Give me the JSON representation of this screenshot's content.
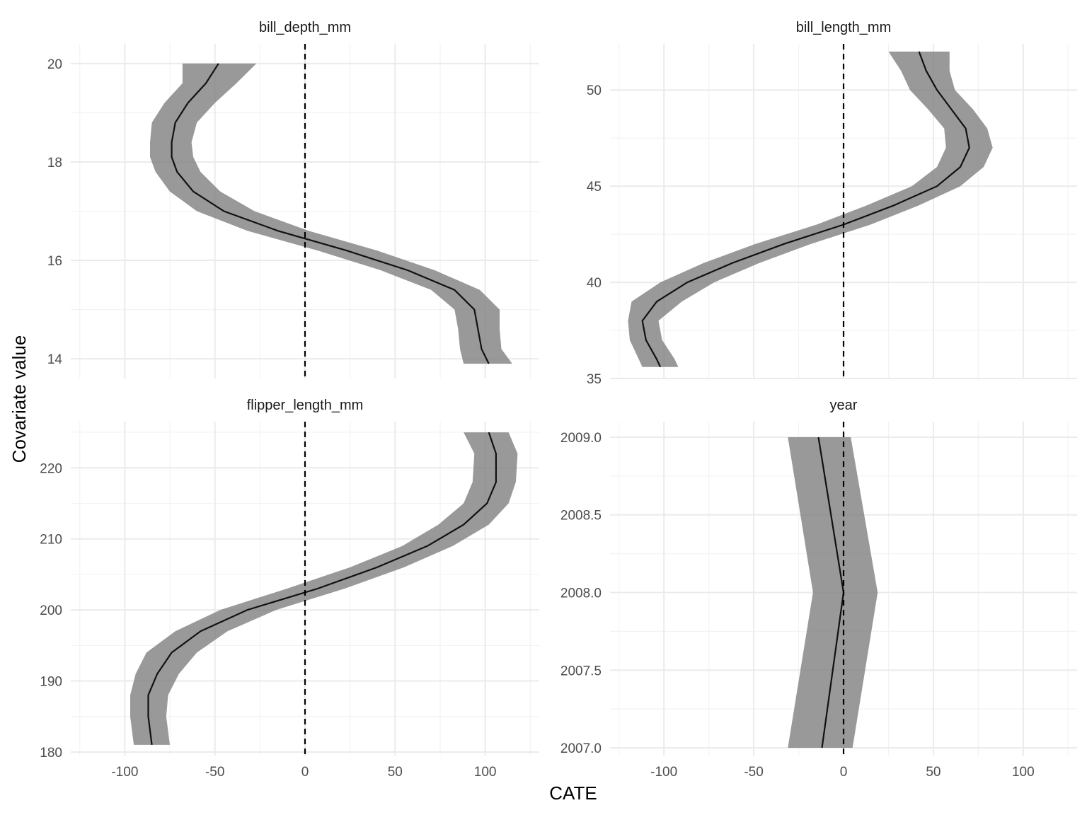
{
  "chart_data": {
    "type": "line",
    "layout": "facet 2x2",
    "xlabel": "CATE",
    "ylabel": "Covariate value",
    "xlim": [
      -130,
      130
    ],
    "xticks": [
      -100,
      -50,
      0,
      50,
      100
    ],
    "xtick_labels": [
      "-100",
      "-50",
      "0",
      "50",
      "100"
    ],
    "reference_line_x": 0,
    "grid": true,
    "colors": {
      "ribbon": "#7f7f7f",
      "line": "#111111",
      "grid": "#ebebeb"
    },
    "panels": [
      {
        "title": "bill_depth_mm",
        "ylim": [
          13.6,
          20.4
        ],
        "yticks": [
          14,
          16,
          18,
          20
        ],
        "ytick_labels": [
          "14",
          "16",
          "18",
          "20"
        ],
        "points": [
          {
            "y": 20.0,
            "cate": -48,
            "lo": -68,
            "hi": -27
          },
          {
            "y": 19.6,
            "cate": -55,
            "lo": -68,
            "hi": -38
          },
          {
            "y": 19.2,
            "cate": -65,
            "lo": -78,
            "hi": -50
          },
          {
            "y": 18.8,
            "cate": -72,
            "lo": -85,
            "hi": -60
          },
          {
            "y": 18.4,
            "cate": -74,
            "lo": -86,
            "hi": -63
          },
          {
            "y": 18.1,
            "cate": -74,
            "lo": -86,
            "hi": -62
          },
          {
            "y": 17.8,
            "cate": -71,
            "lo": -83,
            "hi": -58
          },
          {
            "y": 17.4,
            "cate": -62,
            "lo": -75,
            "hi": -47
          },
          {
            "y": 17.0,
            "cate": -45,
            "lo": -60,
            "hi": -28
          },
          {
            "y": 16.6,
            "cate": -15,
            "lo": -32,
            "hi": 2
          },
          {
            "y": 16.2,
            "cate": 23,
            "lo": 7,
            "hi": 40
          },
          {
            "y": 15.8,
            "cate": 57,
            "lo": 42,
            "hi": 72
          },
          {
            "y": 15.4,
            "cate": 83,
            "lo": 70,
            "hi": 97
          },
          {
            "y": 15.0,
            "cate": 94,
            "lo": 83,
            "hi": 108
          },
          {
            "y": 14.6,
            "cate": 96,
            "lo": 85,
            "hi": 108
          },
          {
            "y": 14.2,
            "cate": 98,
            "lo": 86,
            "hi": 109
          },
          {
            "y": 13.9,
            "cate": 102,
            "lo": 88,
            "hi": 115
          }
        ]
      },
      {
        "title": "bill_length_mm",
        "ylim": [
          35,
          52.4
        ],
        "yticks": [
          35,
          40,
          45,
          50
        ],
        "ytick_labels": [
          "35",
          "40",
          "45",
          "50"
        ],
        "points": [
          {
            "y": 52.0,
            "cate": 42,
            "lo": 25,
            "hi": 59
          },
          {
            "y": 51.0,
            "cate": 46,
            "lo": 32,
            "hi": 59
          },
          {
            "y": 50.0,
            "cate": 52,
            "lo": 37,
            "hi": 62
          },
          {
            "y": 49.0,
            "cate": 60,
            "lo": 47,
            "hi": 72
          },
          {
            "y": 48.0,
            "cate": 68,
            "lo": 56,
            "hi": 80
          },
          {
            "y": 47.0,
            "cate": 70,
            "lo": 57,
            "hi": 83
          },
          {
            "y": 46.0,
            "cate": 65,
            "lo": 52,
            "hi": 78
          },
          {
            "y": 45.0,
            "cate": 52,
            "lo": 38,
            "hi": 65
          },
          {
            "y": 44.0,
            "cate": 28,
            "lo": 13,
            "hi": 42
          },
          {
            "y": 43.0,
            "cate": 0,
            "lo": -15,
            "hi": 15
          },
          {
            "y": 42.0,
            "cate": -33,
            "lo": -49,
            "hi": -18
          },
          {
            "y": 41.0,
            "cate": -62,
            "lo": -78,
            "hi": -47
          },
          {
            "y": 40.0,
            "cate": -87,
            "lo": -102,
            "hi": -72
          },
          {
            "y": 39.0,
            "cate": -104,
            "lo": -118,
            "hi": -90
          },
          {
            "y": 38.0,
            "cate": -112,
            "lo": -120,
            "hi": -103
          },
          {
            "y": 37.0,
            "cate": -110,
            "lo": -119,
            "hi": -101
          },
          {
            "y": 36.0,
            "cate": -104,
            "lo": -114,
            "hi": -94
          },
          {
            "y": 35.6,
            "cate": -102,
            "lo": -112,
            "hi": -92
          }
        ]
      },
      {
        "title": "flipper_length_mm",
        "ylim": [
          179.5,
          226.5
        ],
        "yticks": [
          180,
          190,
          200,
          210,
          220
        ],
        "ytick_labels": [
          "180",
          "190",
          "200",
          "210",
          "220"
        ],
        "points": [
          {
            "y": 225,
            "cate": 102,
            "lo": 88,
            "hi": 113
          },
          {
            "y": 222,
            "cate": 106,
            "lo": 94,
            "hi": 118
          },
          {
            "y": 218,
            "cate": 106,
            "lo": 93,
            "hi": 117
          },
          {
            "y": 215,
            "cate": 101,
            "lo": 88,
            "hi": 113
          },
          {
            "y": 212,
            "cate": 88,
            "lo": 74,
            "hi": 102
          },
          {
            "y": 209,
            "cate": 68,
            "lo": 54,
            "hi": 82
          },
          {
            "y": 206,
            "cate": 40,
            "lo": 25,
            "hi": 55
          },
          {
            "y": 203,
            "cate": 7,
            "lo": -10,
            "hi": 22
          },
          {
            "y": 200,
            "cate": -32,
            "lo": -47,
            "hi": -16
          },
          {
            "y": 197,
            "cate": -58,
            "lo": -72,
            "hi": -43
          },
          {
            "y": 194,
            "cate": -74,
            "lo": -88,
            "hi": -60
          },
          {
            "y": 191,
            "cate": -82,
            "lo": -94,
            "hi": -70
          },
          {
            "y": 188,
            "cate": -87,
            "lo": -97,
            "hi": -76
          },
          {
            "y": 185,
            "cate": -87,
            "lo": -97,
            "hi": -77
          },
          {
            "y": 181,
            "cate": -85,
            "lo": -95,
            "hi": -75
          }
        ]
      },
      {
        "title": "year",
        "ylim": [
          2006.95,
          2009.1
        ],
        "yticks": [
          2007.0,
          2007.5,
          2008.0,
          2008.5,
          2009.0
        ],
        "ytick_labels": [
          "2007.0",
          "2007.5",
          "2008.0",
          "2008.5",
          "2009.0"
        ],
        "points": [
          {
            "y": 2009.0,
            "cate": -14,
            "lo": -31,
            "hi": 4
          },
          {
            "y": 2008.0,
            "cate": 0,
            "lo": -17,
            "hi": 19
          },
          {
            "y": 2007.0,
            "cate": -12,
            "lo": -31,
            "hi": 5
          }
        ]
      }
    ]
  }
}
